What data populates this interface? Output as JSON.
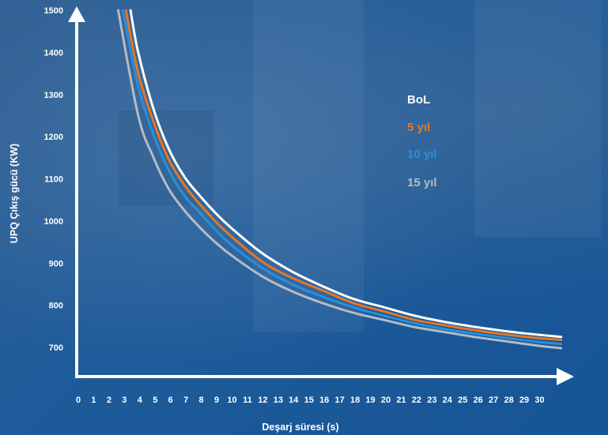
{
  "chart_data": {
    "type": "line",
    "title": "",
    "xlabel": "Deşarj süresi (s)",
    "ylabel": "UPQ Çıkış gücü (KW)",
    "xlim": [
      0,
      31
    ],
    "ylim": [
      650,
      1500
    ],
    "xticks": [
      "0",
      "1",
      "2",
      "3",
      "4",
      "5",
      "6",
      "7",
      "8",
      "9",
      "10",
      "11",
      "12",
      "13",
      "14",
      "15",
      "16",
      "17",
      "18",
      "19",
      "20",
      "21",
      "22",
      "23",
      "24",
      "25",
      "26",
      "27",
      "28",
      "29",
      "30"
    ],
    "yticks": [
      "700",
      "800",
      "900",
      "1000",
      "1100",
      "1200",
      "1300",
      "1400",
      "1500"
    ],
    "grid": false,
    "legend_position": "upper-right",
    "series": [
      {
        "name": "BoL",
        "color": "#ffffff",
        "x": [
          3.5,
          4,
          5,
          6,
          7,
          8,
          9,
          10,
          12,
          14,
          16,
          18,
          20,
          22,
          24,
          26,
          28,
          30,
          31.5
        ],
        "y": [
          1500,
          1400,
          1265,
          1170,
          1105,
          1060,
          1020,
          985,
          925,
          880,
          845,
          815,
          795,
          775,
          760,
          748,
          738,
          730,
          725
        ]
      },
      {
        "name": "5 yıl",
        "color": "#e87722",
        "x": [
          3.2,
          4,
          5,
          6,
          7,
          8,
          9,
          10,
          12,
          14,
          16,
          18,
          20,
          22,
          24,
          26,
          28,
          30,
          31.5
        ],
        "y": [
          1500,
          1350,
          1235,
          1145,
          1085,
          1040,
          1000,
          965,
          905,
          865,
          835,
          805,
          785,
          765,
          752,
          740,
          730,
          722,
          718
        ]
      },
      {
        "name": "10 yıl",
        "color": "#2a8fd8",
        "x": [
          3,
          4,
          5,
          6,
          7,
          8,
          9,
          10,
          12,
          14,
          16,
          18,
          20,
          22,
          24,
          26,
          28,
          30,
          31.5
        ],
        "y": [
          1500,
          1320,
          1205,
          1120,
          1060,
          1020,
          980,
          945,
          890,
          850,
          820,
          795,
          775,
          757,
          743,
          732,
          722,
          713,
          708
        ]
      },
      {
        "name": "15 yıl",
        "color": "#b4bcc6",
        "x": [
          2.7,
          4,
          5,
          6,
          7,
          8,
          9,
          10,
          12,
          14,
          16,
          18,
          20,
          22,
          24,
          26,
          28,
          30,
          31.5
        ],
        "y": [
          1500,
          1250,
          1150,
          1075,
          1025,
          985,
          950,
          920,
          870,
          833,
          805,
          782,
          765,
          748,
          736,
          724,
          714,
          704,
          698
        ]
      }
    ]
  }
}
